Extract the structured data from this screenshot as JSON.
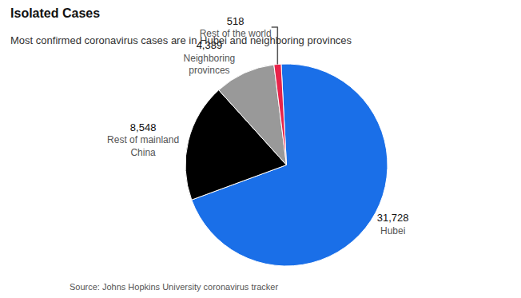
{
  "chart_data": {
    "type": "pie",
    "title": "Isolated Cases",
    "subtitle": "Most confirmed coronavirus cases are in Hubei and neighboring provinces",
    "source": "Source: Johns Hopkins University coronavirus tracker",
    "categories": [
      "Hubei",
      "Rest of mainland\nChina",
      "Neighboring\nprovinces",
      "Rest of the world"
    ],
    "values": [
      31728,
      8548,
      4389,
      518
    ],
    "value_labels": [
      "31,728",
      "8,548",
      "4,389",
      "518"
    ],
    "colors": [
      "#1a6fe8",
      "#000000",
      "#999999",
      "#e8234a"
    ],
    "data_labels": true
  }
}
